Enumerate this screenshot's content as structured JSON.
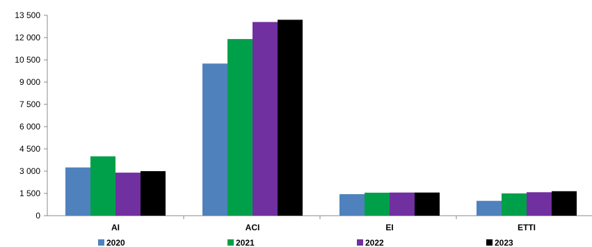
{
  "chart_data": {
    "type": "bar",
    "title": "",
    "xlabel": "",
    "ylabel": "",
    "categories": [
      "AI",
      "ACI",
      "EI",
      "ETTI"
    ],
    "ylim": [
      0,
      13500
    ],
    "yticks": [
      "0",
      "1 500",
      "3 000",
      "4 500",
      "6 000",
      "7 500",
      "9 000",
      "10 500",
      "12 000",
      "13 500"
    ],
    "ytick_values": [
      0,
      1500,
      3000,
      4500,
      6000,
      7500,
      9000,
      10500,
      12000,
      13500
    ],
    "grid": false,
    "legend_position": "bottom",
    "series": [
      {
        "name": "2020",
        "color": "#4f81bd",
        "values": [
          3250,
          10250,
          1450,
          1000
        ]
      },
      {
        "name": "2021",
        "color": "#00a04a",
        "values": [
          4000,
          11900,
          1550,
          1500
        ]
      },
      {
        "name": "2022",
        "color": "#7030a0",
        "values": [
          2900,
          13050,
          1560,
          1580
        ]
      },
      {
        "name": "2023",
        "color": "#000000",
        "values": [
          3000,
          13200,
          1560,
          1650
        ]
      }
    ]
  }
}
